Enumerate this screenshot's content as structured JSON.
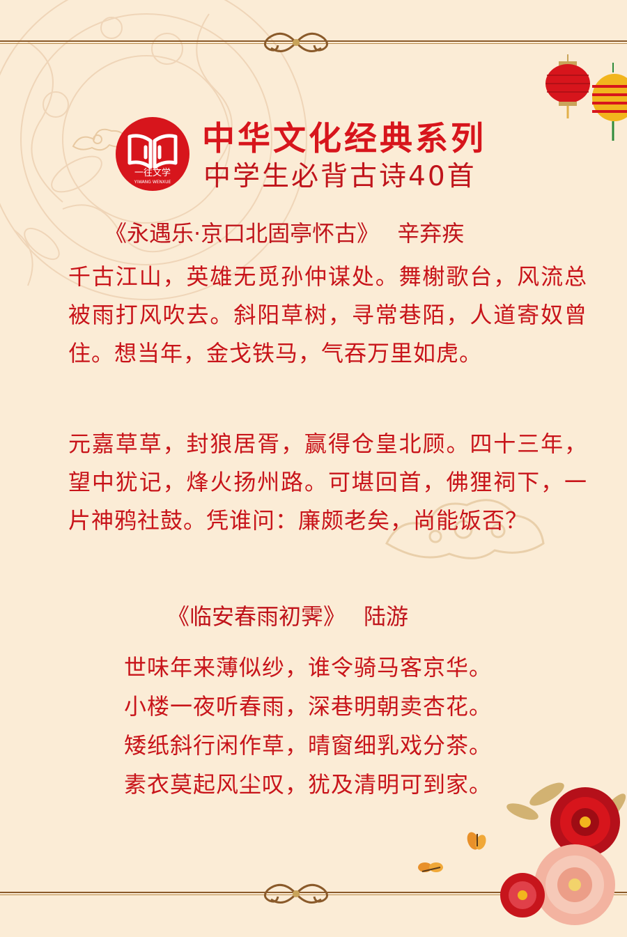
{
  "header": {
    "series_title": "中华文化经典系列",
    "subtitle": "中学生必背古诗40首",
    "logo_text": "一往文学",
    "logo_subtext": "YIWANG WENXUE",
    "logo_icon": "open-book-icon"
  },
  "poems": [
    {
      "title": "《永遇乐·京口北固亭怀古》",
      "author": "辛弃疾",
      "paragraphs": [
        "千古江山，英雄无觅孙仲谋处。舞榭歌台，风流总被雨打风吹去。斜阳草树，寻常巷陌，人道寄奴曾住。想当年，金戈铁马，气吞万里如虎。",
        "元嘉草草，封狼居胥，赢得仓皇北顾。四十三年，望中犹记，烽火扬州路。可堪回首，佛狸祠下，一片神鸦社鼓。凭谁问：廉颇老矣，尚能饭否？"
      ]
    },
    {
      "title": "《临安春雨初霁》",
      "author": "陆游",
      "lines": [
        "世味年来薄似纱，谁令骑马客京华。",
        "小楼一夜听春雨，深巷明朝卖杏花。",
        "矮纸斜行闲作草，晴窗细乳戏分茶。",
        "素衣莫起风尘叹，犹及清明可到家。"
      ]
    }
  ],
  "colors": {
    "background": "#fbecd6",
    "text_red": "#c8141a",
    "title_red": "#d7151c",
    "frame_brown": "#8a5a2a",
    "gold": "#c9a45a"
  },
  "decorations": [
    "lantern-icon",
    "peony-flowers",
    "butterfly-icon",
    "auspicious-cloud-icon",
    "floral-pattern"
  ]
}
